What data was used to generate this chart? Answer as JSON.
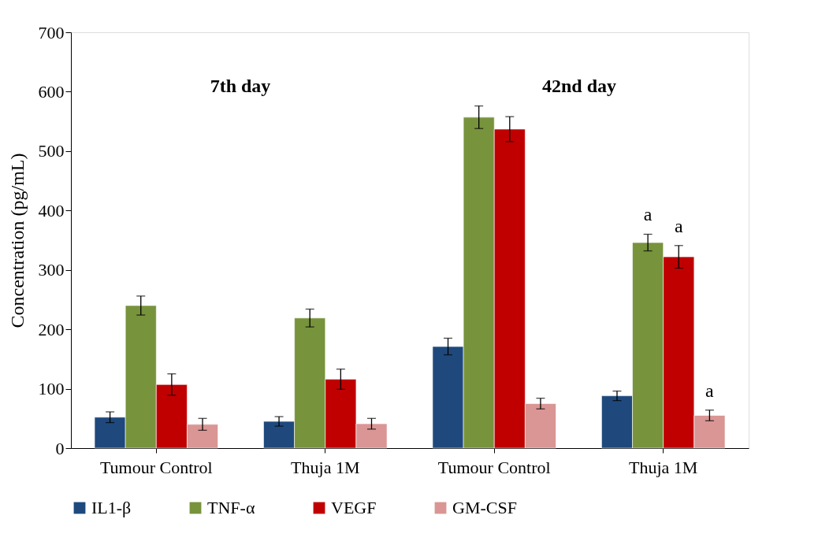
{
  "chart_data": {
    "type": "bar",
    "ylabel": "Concentration (pg/mL)",
    "categories": [
      "Tumour Control",
      "Thuja 1M",
      "Tumour Control",
      "Thuja 1M"
    ],
    "series": [
      {
        "name": "IL1-β",
        "color": "#1f497d",
        "values": [
          52,
          45,
          171,
          88
        ],
        "errors": [
          9,
          8,
          14,
          8
        ]
      },
      {
        "name": "TNF-α",
        "color": "#77933c",
        "values": [
          240,
          219,
          557,
          346
        ],
        "errors": [
          16,
          15,
          19,
          14
        ]
      },
      {
        "name": "VEGF",
        "color": "#c00000",
        "values": [
          107,
          116,
          537,
          322
        ],
        "errors": [
          18,
          17,
          21,
          19
        ]
      },
      {
        "name": "GM-CSF",
        "color": "#d99694",
        "values": [
          40,
          41,
          75,
          55
        ],
        "errors": [
          10,
          9,
          9,
          9
        ]
      }
    ],
    "ylim": [
      0,
      700
    ],
    "yticks": [
      0,
      100,
      200,
      300,
      400,
      500,
      600,
      700
    ],
    "grid": false,
    "legend": "bottom",
    "annotations": [
      "7th day",
      "42nd day",
      "a",
      "a",
      "a"
    ]
  }
}
